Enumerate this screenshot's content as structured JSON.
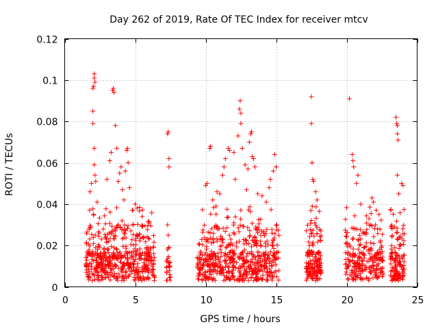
{
  "chart_data": {
    "type": "scatter",
    "title": "Day 262 of 2019, Rate Of TEC Index for receiver mtcv",
    "xlabel": "GPS time / hours",
    "ylabel": "ROTI / TECUs",
    "xlim": [
      0,
      25
    ],
    "ylim": [
      0,
      0.12
    ],
    "grid": true,
    "marker": "plus",
    "color": "#ff0000",
    "x_ticks": [
      0,
      5,
      10,
      15,
      20,
      25
    ],
    "x_tick_labels": [
      "0",
      "5",
      "10",
      "15",
      "20",
      "25"
    ],
    "y_ticks": [
      0,
      0.02,
      0.04,
      0.06,
      0.08,
      0.1,
      0.12
    ],
    "y_tick_labels": [
      "0",
      "0.02",
      "0.04",
      "0.06",
      "0.08",
      "0.1",
      "0.12"
    ],
    "series": [
      {
        "name": "ROTI",
        "clusters": [
          {
            "x_range": [
              1.5,
              6.4
            ],
            "base_max": 0.03,
            "count": 520,
            "spread": "dense"
          },
          {
            "x_range": [
              7.2,
              7.5
            ],
            "base_max": 0.015,
            "count": 25,
            "spread": "sparse"
          },
          {
            "x_range": [
              9.4,
              15.2
            ],
            "base_max": 0.03,
            "count": 560,
            "spread": "dense"
          },
          {
            "x_range": [
              17.1,
              18.2
            ],
            "base_max": 0.03,
            "count": 160,
            "spread": "dense"
          },
          {
            "x_range": [
              19.9,
              22.6
            ],
            "base_max": 0.03,
            "count": 240,
            "spread": "dense"
          },
          {
            "x_range": [
              23.1,
              24.1
            ],
            "base_max": 0.03,
            "count": 130,
            "spread": "dense"
          }
        ],
        "points": [
          [
            1.8,
            0.046
          ],
          [
            1.9,
            0.05
          ],
          [
            2.0,
            0.079
          ],
          [
            2.0,
            0.085
          ],
          [
            2.0,
            0.096
          ],
          [
            2.05,
            0.097
          ],
          [
            2.1,
            0.101
          ],
          [
            2.1,
            0.103
          ],
          [
            2.15,
            0.099
          ],
          [
            2.1,
            0.067
          ],
          [
            2.1,
            0.059
          ],
          [
            2.15,
            0.054
          ],
          [
            2.2,
            0.051
          ],
          [
            2.3,
            0.041
          ],
          [
            3.0,
            0.052
          ],
          [
            3.2,
            0.061
          ],
          [
            3.3,
            0.065
          ],
          [
            3.4,
            0.095
          ],
          [
            3.45,
            0.096
          ],
          [
            3.5,
            0.094
          ],
          [
            3.6,
            0.078
          ],
          [
            3.7,
            0.067
          ],
          [
            3.8,
            0.051
          ],
          [
            3.9,
            0.055
          ],
          [
            4.0,
            0.058
          ],
          [
            4.1,
            0.047
          ],
          [
            4.2,
            0.042
          ],
          [
            4.3,
            0.056
          ],
          [
            4.4,
            0.066
          ],
          [
            4.45,
            0.067
          ],
          [
            4.5,
            0.06
          ],
          [
            4.6,
            0.048
          ],
          [
            4.8,
            0.037
          ],
          [
            5.0,
            0.04
          ],
          [
            5.5,
            0.034
          ],
          [
            6.0,
            0.031
          ],
          [
            7.3,
            0.074
          ],
          [
            7.35,
            0.075
          ],
          [
            7.4,
            0.062
          ],
          [
            7.4,
            0.058
          ],
          [
            7.3,
            0.03
          ],
          [
            7.35,
            0.025
          ],
          [
            10.0,
            0.049
          ],
          [
            10.1,
            0.05
          ],
          [
            10.3,
            0.067
          ],
          [
            10.35,
            0.068
          ],
          [
            10.5,
            0.042
          ],
          [
            10.8,
            0.046
          ],
          [
            11.0,
            0.045
          ],
          [
            11.2,
            0.054
          ],
          [
            11.3,
            0.058
          ],
          [
            11.4,
            0.062
          ],
          [
            11.6,
            0.067
          ],
          [
            11.7,
            0.066
          ],
          [
            12.0,
            0.065
          ],
          [
            12.1,
            0.052
          ],
          [
            12.3,
            0.073
          ],
          [
            12.4,
            0.086
          ],
          [
            12.45,
            0.09
          ],
          [
            12.5,
            0.084
          ],
          [
            12.5,
            0.079
          ],
          [
            12.6,
            0.067
          ],
          [
            12.8,
            0.059
          ],
          [
            12.9,
            0.047
          ],
          [
            13.0,
            0.057
          ],
          [
            13.1,
            0.07
          ],
          [
            13.2,
            0.074
          ],
          [
            13.25,
            0.075
          ],
          [
            13.3,
            0.063
          ],
          [
            13.4,
            0.062
          ],
          [
            13.5,
            0.058
          ],
          [
            13.7,
            0.045
          ],
          [
            14.0,
            0.044
          ],
          [
            14.3,
            0.041
          ],
          [
            14.5,
            0.048
          ],
          [
            14.6,
            0.052
          ],
          [
            14.8,
            0.056
          ],
          [
            14.9,
            0.064
          ],
          [
            15.0,
            0.058
          ],
          [
            17.5,
            0.092
          ],
          [
            17.5,
            0.079
          ],
          [
            17.55,
            0.06
          ],
          [
            17.6,
            0.052
          ],
          [
            17.65,
            0.051
          ],
          [
            17.8,
            0.046
          ],
          [
            17.9,
            0.042
          ],
          [
            20.2,
            0.091
          ],
          [
            20.4,
            0.064
          ],
          [
            20.45,
            0.061
          ],
          [
            20.5,
            0.058
          ],
          [
            20.7,
            0.05
          ],
          [
            20.8,
            0.054
          ],
          [
            21.0,
            0.04
          ],
          [
            21.8,
            0.043
          ],
          [
            21.9,
            0.041
          ],
          [
            22.1,
            0.037
          ],
          [
            22.3,
            0.035
          ],
          [
            23.5,
            0.082
          ],
          [
            23.55,
            0.079
          ],
          [
            23.6,
            0.078
          ],
          [
            23.6,
            0.074
          ],
          [
            23.65,
            0.071
          ],
          [
            23.6,
            0.054
          ],
          [
            23.7,
            0.045
          ],
          [
            23.9,
            0.05
          ],
          [
            24.0,
            0.049
          ]
        ]
      }
    ]
  }
}
